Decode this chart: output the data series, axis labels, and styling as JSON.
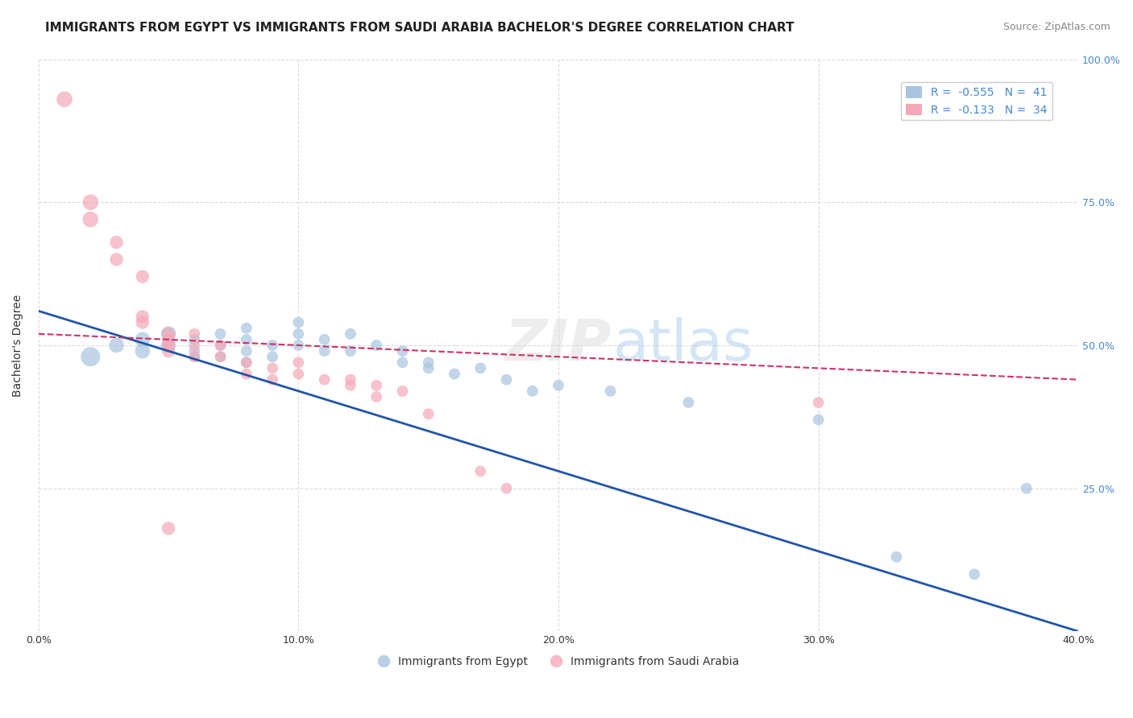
{
  "title": "IMMIGRANTS FROM EGYPT VS IMMIGRANTS FROM SAUDI ARABIA BACHELOR'S DEGREE CORRELATION CHART",
  "source": "Source: ZipAtlas.com",
  "xlabel": "",
  "ylabel": "Bachelor's Degree",
  "xlim": [
    0.0,
    0.4
  ],
  "ylim": [
    0.0,
    1.0
  ],
  "xticks": [
    0.0,
    0.1,
    0.2,
    0.3,
    0.4
  ],
  "xtick_labels": [
    "0.0%",
    "10.0%",
    "20.0%",
    "30.0%",
    "40.0%"
  ],
  "yticks": [
    0.0,
    0.25,
    0.5,
    0.75,
    1.0
  ],
  "ytick_labels": [
    "",
    "25.0%",
    "50.0%",
    "75.0%",
    "100.0%"
  ],
  "legend_r1": "R =  -0.555   N =  41",
  "legend_r2": "R =  -0.133   N =  34",
  "egypt_color": "#a8c4e0",
  "saudi_color": "#f4a9b8",
  "egypt_line_color": "#2255aa",
  "saudi_line_color": "#cc3366",
  "watermark": "ZIPatlas",
  "egypt_scatter": [
    [
      0.02,
      0.48
    ],
    [
      0.03,
      0.5
    ],
    [
      0.04,
      0.51
    ],
    [
      0.04,
      0.49
    ],
    [
      0.05,
      0.52
    ],
    [
      0.05,
      0.5
    ],
    [
      0.06,
      0.51
    ],
    [
      0.06,
      0.49
    ],
    [
      0.06,
      0.48
    ],
    [
      0.07,
      0.52
    ],
    [
      0.07,
      0.5
    ],
    [
      0.07,
      0.48
    ],
    [
      0.08,
      0.53
    ],
    [
      0.08,
      0.51
    ],
    [
      0.08,
      0.49
    ],
    [
      0.08,
      0.47
    ],
    [
      0.09,
      0.5
    ],
    [
      0.09,
      0.48
    ],
    [
      0.1,
      0.54
    ],
    [
      0.1,
      0.52
    ],
    [
      0.1,
      0.5
    ],
    [
      0.11,
      0.51
    ],
    [
      0.11,
      0.49
    ],
    [
      0.12,
      0.52
    ],
    [
      0.12,
      0.49
    ],
    [
      0.13,
      0.5
    ],
    [
      0.14,
      0.49
    ],
    [
      0.14,
      0.47
    ],
    [
      0.15,
      0.47
    ],
    [
      0.15,
      0.46
    ],
    [
      0.16,
      0.45
    ],
    [
      0.17,
      0.46
    ],
    [
      0.18,
      0.44
    ],
    [
      0.19,
      0.42
    ],
    [
      0.2,
      0.43
    ],
    [
      0.22,
      0.42
    ],
    [
      0.25,
      0.4
    ],
    [
      0.3,
      0.37
    ],
    [
      0.33,
      0.13
    ],
    [
      0.36,
      0.1
    ],
    [
      0.38,
      0.25
    ]
  ],
  "saudi_scatter": [
    [
      0.01,
      0.93
    ],
    [
      0.02,
      0.75
    ],
    [
      0.02,
      0.72
    ],
    [
      0.03,
      0.68
    ],
    [
      0.03,
      0.65
    ],
    [
      0.04,
      0.62
    ],
    [
      0.04,
      0.55
    ],
    [
      0.04,
      0.54
    ],
    [
      0.05,
      0.52
    ],
    [
      0.05,
      0.51
    ],
    [
      0.05,
      0.5
    ],
    [
      0.05,
      0.49
    ],
    [
      0.06,
      0.52
    ],
    [
      0.06,
      0.5
    ],
    [
      0.06,
      0.48
    ],
    [
      0.07,
      0.5
    ],
    [
      0.07,
      0.48
    ],
    [
      0.08,
      0.47
    ],
    [
      0.08,
      0.45
    ],
    [
      0.09,
      0.46
    ],
    [
      0.09,
      0.44
    ],
    [
      0.1,
      0.47
    ],
    [
      0.1,
      0.45
    ],
    [
      0.11,
      0.44
    ],
    [
      0.12,
      0.44
    ],
    [
      0.12,
      0.43
    ],
    [
      0.13,
      0.43
    ],
    [
      0.13,
      0.41
    ],
    [
      0.14,
      0.42
    ],
    [
      0.15,
      0.38
    ],
    [
      0.17,
      0.28
    ],
    [
      0.18,
      0.25
    ],
    [
      0.3,
      0.4
    ],
    [
      0.05,
      0.18
    ]
  ],
  "egypt_line": [
    [
      0.0,
      0.56
    ],
    [
      0.4,
      0.0
    ]
  ],
  "saudi_line": [
    [
      0.0,
      0.52
    ],
    [
      0.4,
      0.44
    ]
  ],
  "saudi_line_dashed": true,
  "title_fontsize": 11,
  "axis_fontsize": 10,
  "tick_fontsize": 9,
  "source_fontsize": 9,
  "dot_size": 120,
  "background_color": "#ffffff",
  "grid_color": "#cccccc",
  "axis_color": "#555555",
  "right_ytick_color": "#4488cc"
}
